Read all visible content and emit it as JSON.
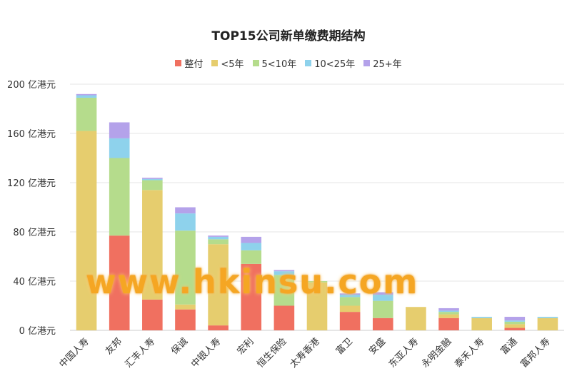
{
  "title": "TOP15公司新单缴费期结构",
  "watermark": "www.hkinsu.com",
  "legend": [
    {
      "label": "整付",
      "color": "#f07060"
    },
    {
      "label": "<5年",
      "color": "#e6cd6e"
    },
    {
      "label": "5<10年",
      "color": "#b5dc8c"
    },
    {
      "label": "10<25年",
      "color": "#8ed2ec"
    },
    {
      "label": "25+年",
      "color": "#b4a2ea"
    }
  ],
  "chart_data": {
    "type": "bar",
    "stacked": true,
    "title": "TOP15公司新单缴费期结构",
    "ylim": [
      0,
      200
    ],
    "yticks": [
      "0 亿港元",
      "40 亿港元",
      "80 亿港元",
      "120 亿港元",
      "160 亿港元",
      "200 亿港元"
    ],
    "categories": [
      "中国人寿",
      "友邦",
      "汇丰人寿",
      "保诚",
      "中银人寿",
      "宏利",
      "恒生保险",
      "太寿香港",
      "富卫",
      "安盛",
      "东亚人寿",
      "永明金融",
      "泰禾人寿",
      "富通",
      "富邦人寿"
    ],
    "series": [
      {
        "name": "整付",
        "color": "#f07060",
        "values": [
          0,
          77,
          25,
          17,
          4,
          54,
          20,
          0,
          15,
          10,
          0,
          10,
          0,
          2,
          0
        ]
      },
      {
        "name": "<5年",
        "color": "#e6cd6e",
        "values": [
          162,
          0,
          89,
          4,
          66,
          0,
          0,
          39,
          5,
          0,
          19,
          3,
          10,
          3,
          10
        ]
      },
      {
        "name": "5<10年",
        "color": "#b5dc8c",
        "values": [
          27,
          63,
          8,
          60,
          4,
          11,
          25,
          1,
          7,
          14,
          0,
          2,
          0,
          2,
          0
        ]
      },
      {
        "name": "10<25年",
        "color": "#8ed2ec",
        "values": [
          2,
          16,
          1,
          14,
          2,
          6,
          3,
          0,
          2,
          5,
          0,
          1,
          1,
          1,
          1
        ]
      },
      {
        "name": "25+年",
        "color": "#b4a2ea",
        "values": [
          1,
          13,
          1,
          5,
          1,
          5,
          1,
          0,
          1,
          2,
          0,
          2,
          0,
          3,
          0
        ]
      }
    ]
  }
}
